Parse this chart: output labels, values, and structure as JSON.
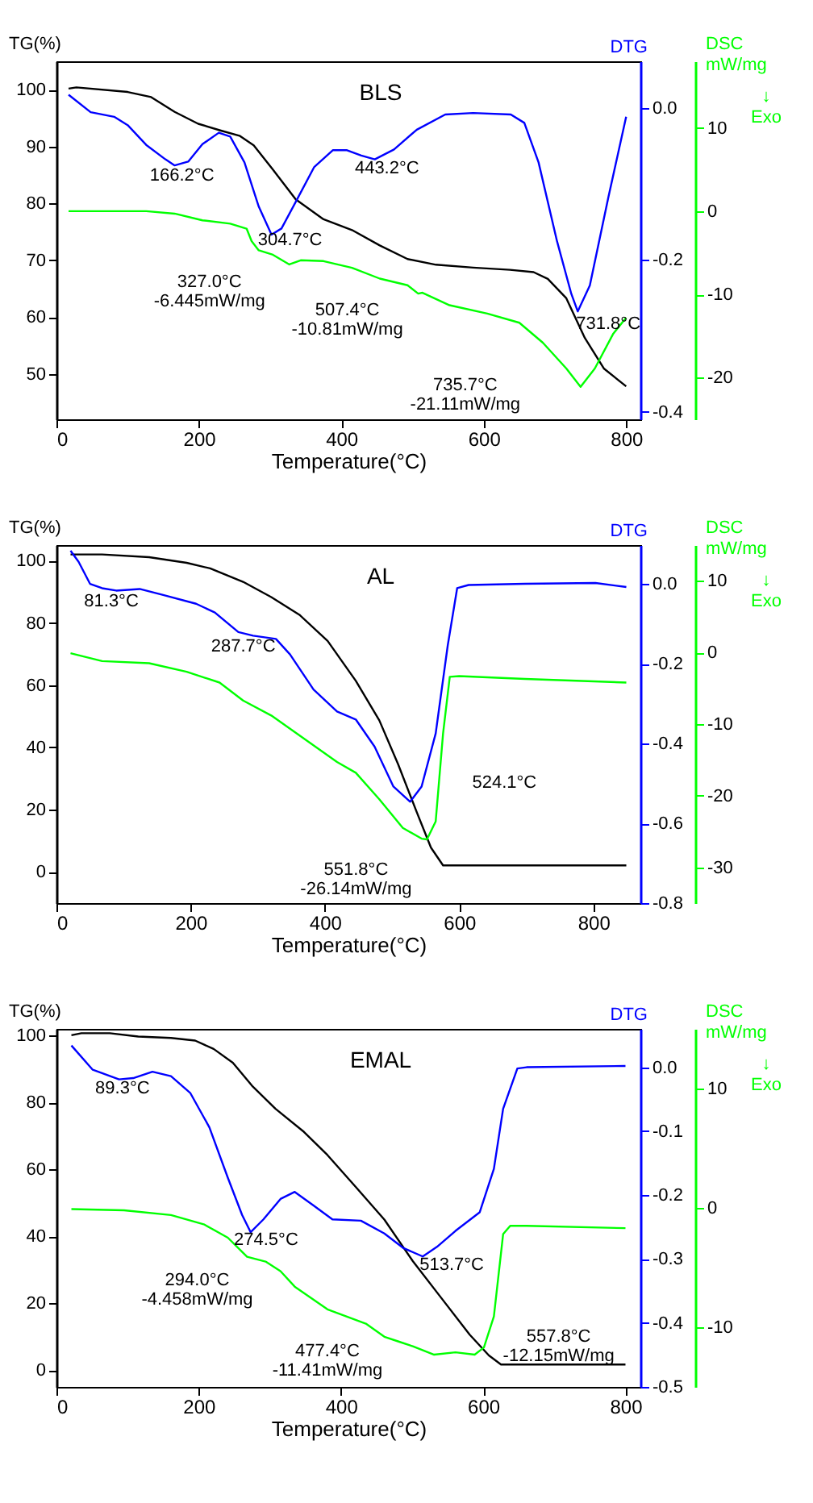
{
  "chart_data": [
    {
      "type": "line",
      "title": "BLS",
      "xlabel": "Temperature(°C)",
      "ylabel": "TG(%)",
      "y2label": "DTG",
      "y3label": "DSC\nmW/mg",
      "xlim": [
        0,
        820
      ],
      "xticks": [
        0,
        200,
        400,
        600,
        800
      ],
      "ylim": [
        42,
        105
      ],
      "yticks": [
        50,
        60,
        70,
        80,
        90,
        100
      ],
      "y2lim": [
        -0.41,
        0.061
      ],
      "y2ticks": [
        {
          "value": 0,
          "label": "0.0"
        },
        {
          "value": -0.2,
          "label": "-0.2"
        },
        {
          "value": -0.4,
          "label": "-0.4"
        }
      ],
      "y3lim": [
        -25,
        18
      ],
      "y3ticks": [
        10,
        0,
        -10,
        -20
      ],
      "grid": false,
      "series": [
        {
          "color": "#000000",
          "axis": "y",
          "x": [
            17,
            28,
            100,
            133,
            166,
            199,
            231,
            257,
            277,
            303,
            336,
            375,
            415,
            454,
            493,
            533,
            585,
            637,
            670,
            690,
            716,
            742,
            769,
            800
          ],
          "values": [
            100.2,
            100.4,
            99.6,
            98.7,
            96.1,
            94.0,
            92.8,
            91.9,
            90.2,
            86.1,
            80.7,
            77.2,
            75.3,
            72.6,
            70.2,
            69.2,
            68.7,
            68.3,
            67.9,
            66.7,
            63.3,
            56.3,
            50.9,
            47.8
          ]
        },
        {
          "color": "#0000ff",
          "axis": "y2",
          "x": [
            17,
            48,
            81,
            100,
            126,
            153,
            166,
            185,
            205,
            228,
            244,
            264,
            284,
            302,
            316,
            336,
            362,
            388,
            408,
            428,
            447,
            474,
            506,
            546,
            585,
            638,
            657,
            677,
            703,
            723,
            732,
            749,
            775,
            800
          ],
          "values": [
            0.017,
            -0.006,
            -0.012,
            -0.023,
            -0.049,
            -0.068,
            -0.076,
            -0.071,
            -0.048,
            -0.033,
            -0.038,
            -0.072,
            -0.13,
            -0.167,
            -0.159,
            -0.124,
            -0.078,
            -0.056,
            -0.056,
            -0.063,
            -0.068,
            -0.055,
            -0.029,
            -0.009,
            -0.007,
            -0.009,
            -0.02,
            -0.072,
            -0.176,
            -0.245,
            -0.268,
            -0.234,
            -0.118,
            -0.012
          ]
        },
        {
          "color": "#00ff00",
          "axis": "y3",
          "x": [
            17,
            126,
            166,
            205,
            244,
            267,
            274,
            284,
            303,
            327,
            343,
            375,
            415,
            454,
            493,
            508,
            514,
            552,
            605,
            650,
            683,
            716,
            736,
            756,
            782,
            800
          ],
          "values": [
            0.0,
            0.0,
            -0.3,
            -1.1,
            -1.5,
            -2.1,
            -3.6,
            -4.7,
            -5.2,
            -6.4,
            -5.9,
            -6.0,
            -6.8,
            -8.1,
            -8.9,
            -9.9,
            -9.8,
            -11.3,
            -12.3,
            -13.4,
            -15.8,
            -18.9,
            -21.1,
            -18.9,
            -14.7,
            -12.8
          ]
        }
      ],
      "annotations": [
        "↓\nExo",
        "166.2°C",
        "443.2°C",
        "304.7°C",
        "327.0°C\n-6.445mW/mg",
        "507.4°C\n-10.81mW/mg",
        "731.8°C",
        "735.7°C\n-21.11mW/mg"
      ]
    },
    {
      "type": "line",
      "title": "AL",
      "xlabel": "Temperature(°C)",
      "ylabel": "TG(%)",
      "y2label": "DTG",
      "y3label": "DSC\nmW/mg",
      "xlim": [
        0,
        870
      ],
      "xticks": [
        0,
        200,
        400,
        600,
        800
      ],
      "ylim": [
        -10,
        105
      ],
      "yticks": [
        0,
        20,
        40,
        60,
        80,
        100
      ],
      "y2lim": [
        -0.8,
        0.097
      ],
      "y2ticks": [
        {
          "value": 0,
          "label": "0.0"
        },
        {
          "value": -0.2,
          "label": "-0.2"
        },
        {
          "value": -0.4,
          "label": "-0.4"
        },
        {
          "value": -0.6,
          "label": "-0.6"
        },
        {
          "value": -0.8,
          "label": "-0.8"
        }
      ],
      "y3lim": [
        -35,
        15
      ],
      "y3ticks": [
        10,
        0,
        -10,
        -20,
        -30
      ],
      "grid": false,
      "series": [
        {
          "color": "#000000",
          "axis": "y",
          "x": [
            21,
            68,
            138,
            194,
            229,
            278,
            320,
            362,
            404,
            446,
            481,
            509,
            537,
            558,
            576,
            628,
            849
          ],
          "values": [
            102.0,
            102.0,
            101.1,
            99.3,
            97.5,
            93.2,
            88.3,
            82.6,
            74.2,
            61.4,
            48.7,
            34.6,
            19.1,
            7.8,
            2.1,
            2.1,
            2.1
          ]
        },
        {
          "color": "#0000ff",
          "axis": "y2",
          "x": [
            21,
            33,
            50,
            68,
            89,
            124,
            159,
            208,
            236,
            271,
            293,
            327,
            348,
            383,
            418,
            446,
            474,
            502,
            527,
            544,
            565,
            583,
            597,
            614,
            698,
            803,
            849
          ],
          "values": [
            0.083,
            0.055,
            0.0,
            -0.011,
            -0.017,
            -0.013,
            -0.028,
            -0.05,
            -0.072,
            -0.121,
            -0.13,
            -0.138,
            -0.177,
            -0.265,
            -0.32,
            -0.34,
            -0.408,
            -0.508,
            -0.546,
            -0.508,
            -0.375,
            -0.154,
            -0.011,
            -0.003,
            0.0,
            0.002,
            -0.008
          ]
        },
        {
          "color": "#00ff00",
          "axis": "y3",
          "x": [
            21,
            68,
            138,
            194,
            243,
            278,
            320,
            376,
            418,
            446,
            481,
            516,
            544,
            552,
            565,
            576,
            586,
            600,
            698,
            849
          ],
          "values": [
            -0.1,
            -1.2,
            -1.5,
            -2.7,
            -4.2,
            -6.7,
            -8.8,
            -12.5,
            -15.3,
            -16.8,
            -20.5,
            -24.5,
            -26.0,
            -26.1,
            -23.6,
            -11.3,
            -3.4,
            -3.3,
            -3.7,
            -4.2
          ]
        }
      ],
      "annotations": [
        "↓\nExo",
        "81.3°C",
        "287.7°C",
        "524.1°C",
        "551.8°C\n-26.14mW/mg"
      ]
    },
    {
      "type": "line",
      "title": "EMAL",
      "xlabel": "Temperature(°C)",
      "ylabel": "TG(%)",
      "y2label": "DTG",
      "y3label": "DSC\nmW/mg",
      "xlim": [
        0,
        821
      ],
      "xticks": [
        0,
        200,
        400,
        600,
        800
      ],
      "ylim": [
        -5,
        102
      ],
      "yticks": [
        0,
        20,
        40,
        60,
        80,
        100
      ],
      "y2lim": [
        -0.5,
        0.06
      ],
      "y2ticks": [
        {
          "value": 0,
          "label": "0.0"
        },
        {
          "value": -0.1,
          "label": "-0.1"
        },
        {
          "value": -0.2,
          "label": "-0.2"
        },
        {
          "value": -0.3,
          "label": "-0.3"
        },
        {
          "value": -0.4,
          "label": "-0.4"
        },
        {
          "value": -0.5,
          "label": "-0.5"
        }
      ],
      "y3lim": [
        -15,
        15
      ],
      "y3ticks": [
        10,
        0,
        -10
      ],
      "grid": false,
      "series": [
        {
          "color": "#000000",
          "axis": "y",
          "x": [
            21,
            35,
            75,
            115,
            161,
            195,
            221,
            248,
            275,
            308,
            348,
            381,
            421,
            461,
            501,
            541,
            581,
            608,
            625,
            661,
            800
          ],
          "values": [
            100.1,
            100.7,
            100.7,
            99.7,
            99.3,
            98.5,
            96.0,
            91.9,
            85.0,
            78.1,
            71.2,
            64.3,
            54.7,
            45.0,
            32.6,
            21.6,
            10.6,
            4.4,
            1.7,
            1.7,
            1.7
          ]
        },
        {
          "color": "#0000ff",
          "axis": "y2",
          "x": [
            21,
            51,
            88,
            108,
            135,
            161,
            188,
            215,
            241,
            261,
            273,
            291,
            315,
            335,
            361,
            388,
            428,
            461,
            488,
            515,
            535,
            561,
            595,
            615,
            628,
            648,
            661,
            800
          ],
          "values": [
            0.034,
            -0.004,
            -0.019,
            -0.017,
            -0.007,
            -0.014,
            -0.04,
            -0.094,
            -0.173,
            -0.231,
            -0.258,
            -0.238,
            -0.206,
            -0.195,
            -0.216,
            -0.238,
            -0.24,
            -0.26,
            -0.283,
            -0.296,
            -0.281,
            -0.256,
            -0.227,
            -0.159,
            -0.065,
            -0.002,
            0.0,
            0.002
          ]
        },
        {
          "color": "#00ff00",
          "axis": "y3",
          "x": [
            21,
            95,
            161,
            208,
            241,
            268,
            294,
            315,
            335,
            381,
            435,
            461,
            481,
            501,
            531,
            561,
            588,
            601,
            615,
            628,
            638,
            661,
            800
          ],
          "values": [
            -0.1,
            -0.2,
            -0.6,
            -1.4,
            -2.5,
            -4.1,
            -4.5,
            -5.3,
            -6.6,
            -8.5,
            -9.7,
            -10.8,
            -11.2,
            -11.6,
            -12.3,
            -12.1,
            -12.3,
            -11.7,
            -9.1,
            -2.2,
            -1.5,
            -1.5,
            -1.7
          ]
        }
      ],
      "annotations": [
        "↓\nExo",
        "89.3°C",
        "274.5°C",
        "294.0°C\n-4.458mW/mg",
        "513.7°C",
        "477.4°C\n-11.41mW/mg",
        "557.8°C\n-12.15mW/mg"
      ]
    }
  ]
}
